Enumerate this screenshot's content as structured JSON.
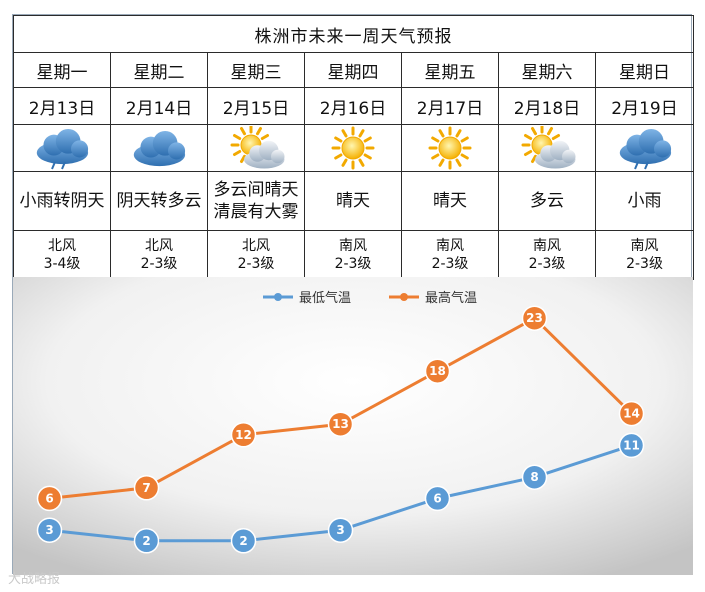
{
  "title": "株洲市未来一周天气预报",
  "days": [
    {
      "weekday": "星期一",
      "date": "2月13日",
      "icon": "rain-cloud-icon",
      "weather": "小雨转阴天",
      "wind_dir": "北风",
      "wind_level": "3-4级"
    },
    {
      "weekday": "星期二",
      "date": "2月14日",
      "icon": "cloud-icon",
      "weather": "阴天转多云",
      "wind_dir": "北风",
      "wind_level": "2-3级"
    },
    {
      "weekday": "星期三",
      "date": "2月15日",
      "icon": "sun-cloud-icon",
      "weather": "多云间晴天清晨有大雾",
      "wind_dir": "北风",
      "wind_level": "2-3级"
    },
    {
      "weekday": "星期四",
      "date": "2月16日",
      "icon": "sun-icon",
      "weather": "晴天",
      "wind_dir": "南风",
      "wind_level": "2-3级"
    },
    {
      "weekday": "星期五",
      "date": "2月17日",
      "icon": "sun-icon",
      "weather": "晴天",
      "wind_dir": "南风",
      "wind_level": "2-3级"
    },
    {
      "weekday": "星期六",
      "date": "2月18日",
      "icon": "sun-cloud-icon",
      "weather": "多云",
      "wind_dir": "南风",
      "wind_level": "2-3级"
    },
    {
      "weekday": "星期日",
      "date": "2月19日",
      "icon": "rain-cloud-icon",
      "weather": "小雨",
      "wind_dir": "南风",
      "wind_level": "2-3级"
    }
  ],
  "chart_data": {
    "type": "line",
    "x": [
      "2月13日",
      "2月14日",
      "2月15日",
      "2月16日",
      "2月17日",
      "2月18日",
      "2月19日"
    ],
    "series": [
      {
        "name": "最低气温",
        "values": [
          3,
          2,
          2,
          3,
          6,
          8,
          11
        ],
        "color": "#5b9bd5"
      },
      {
        "name": "最高气温",
        "values": [
          6,
          7,
          12,
          13,
          18,
          23,
          14
        ],
        "color": "#ed7d31"
      }
    ],
    "ylim": [
      0,
      25
    ],
    "grid": false,
    "legend": "top-center",
    "data_labels": true
  },
  "watermark": "大战略报"
}
